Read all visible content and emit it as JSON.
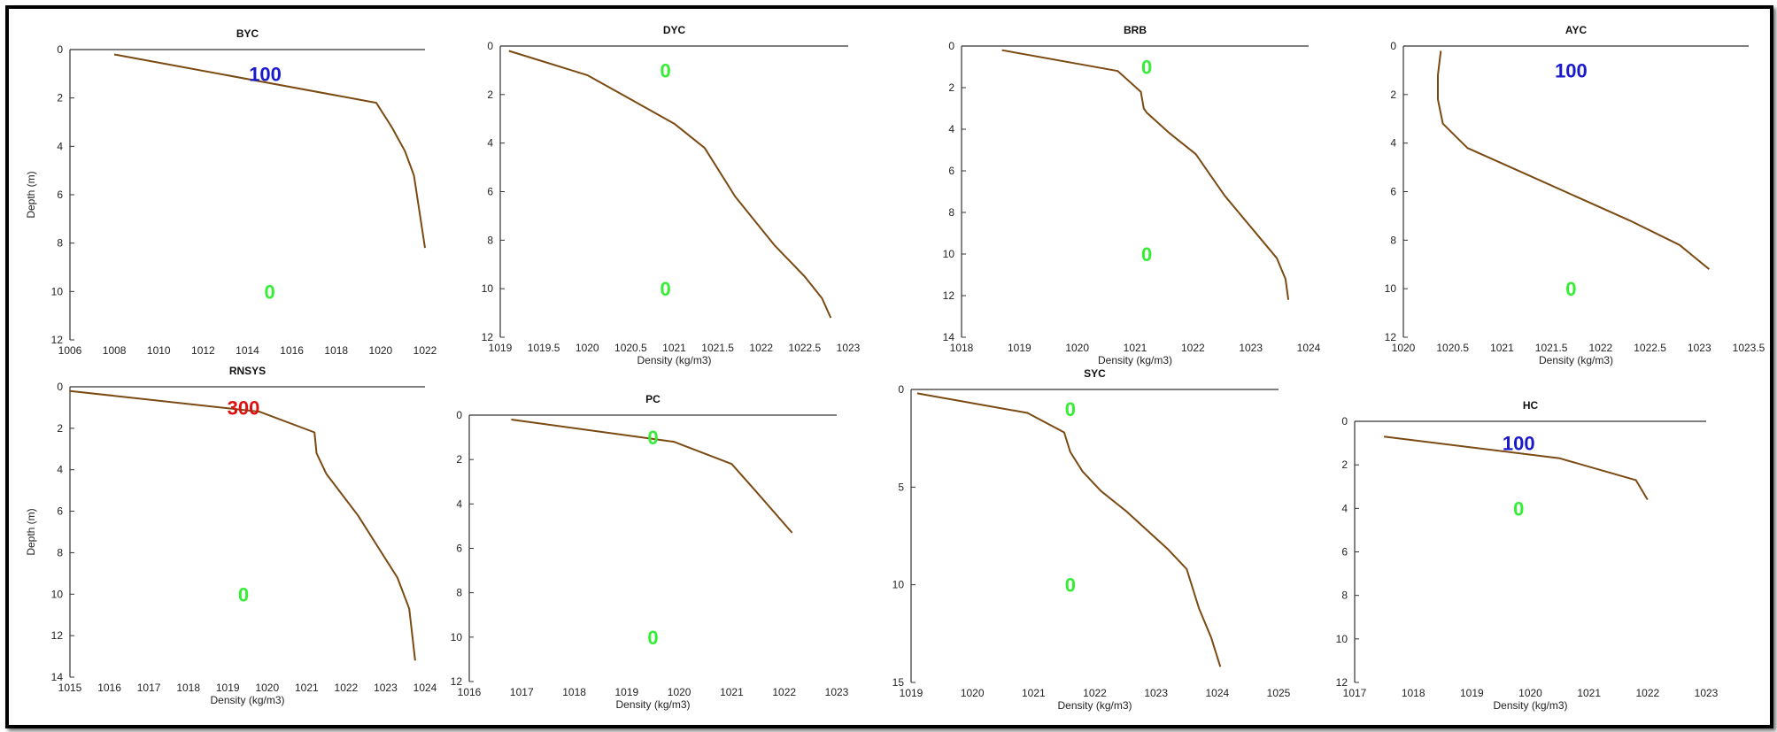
{
  "colors": {
    "profile": "#7B4A12",
    "axis": "#333333",
    "blue": "#1a1acc",
    "green": "#33ee33",
    "red": "#dd1111"
  },
  "chart_data": [
    {
      "type": "line",
      "title": "BYC",
      "xlabel": "",
      "ylabel": "Depth (m)",
      "xlim": [
        1006,
        1022
      ],
      "ylim": [
        0,
        12
      ],
      "xticks": [
        1006,
        1008,
        1010,
        1012,
        1014,
        1016,
        1018,
        1020,
        1022
      ],
      "yticks": [
        0,
        2,
        4,
        6,
        8,
        10,
        12
      ],
      "x": [
        1008,
        1019.8,
        1020.5,
        1021.1,
        1021.5,
        1022
      ],
      "y": [
        0.2,
        2.2,
        3.2,
        4.2,
        5.2,
        8.2
      ],
      "annotations": [
        {
          "text": "100",
          "x": 1014.8,
          "y": 1.0,
          "color": "blue"
        },
        {
          "text": "0",
          "x": 1015,
          "y": 10.0,
          "color": "green"
        }
      ]
    },
    {
      "type": "line",
      "title": "DYC",
      "xlabel": "Density (kg/m3)",
      "ylabel": "",
      "xlim": [
        1019,
        1023
      ],
      "ylim": [
        0,
        12
      ],
      "xticks": [
        1019,
        1019.5,
        1020,
        1020.5,
        1021,
        1021.5,
        1022,
        1022.5,
        1023
      ],
      "yticks": [
        0,
        2,
        4,
        6,
        8,
        10,
        12
      ],
      "x": [
        1019.1,
        1020.0,
        1020.5,
        1021.0,
        1021.35,
        1021.7,
        1022.15,
        1022.5,
        1022.7,
        1022.8
      ],
      "y": [
        0.2,
        1.2,
        2.2,
        3.2,
        4.2,
        6.2,
        8.2,
        9.5,
        10.4,
        11.2
      ],
      "annotations": [
        {
          "text": "0",
          "x": 1020.9,
          "y": 1.0,
          "color": "green"
        },
        {
          "text": "0",
          "x": 1020.9,
          "y": 10.0,
          "color": "green"
        }
      ]
    },
    {
      "type": "line",
      "title": "BRB",
      "xlabel": "Density (kg/m3)",
      "ylabel": "",
      "xlim": [
        1018,
        1024
      ],
      "ylim": [
        0,
        14
      ],
      "xticks": [
        1018,
        1019,
        1020,
        1021,
        1022,
        1023,
        1024
      ],
      "yticks": [
        0,
        2,
        4,
        6,
        8,
        10,
        12,
        14
      ],
      "x": [
        1018.7,
        1020.7,
        1021.1,
        1021.15,
        1021.2,
        1021.6,
        1022.05,
        1022.3,
        1022.55,
        1022.85,
        1023.15,
        1023.45,
        1023.6,
        1023.65
      ],
      "y": [
        0.2,
        1.2,
        2.2,
        3.0,
        3.2,
        4.2,
        5.2,
        6.2,
        7.2,
        8.2,
        9.2,
        10.2,
        11.2,
        12.2
      ],
      "annotations": [
        {
          "text": "0",
          "x": 1021.2,
          "y": 1.0,
          "color": "green"
        },
        {
          "text": "0",
          "x": 1021.2,
          "y": 10.0,
          "color": "green"
        }
      ]
    },
    {
      "type": "line",
      "title": "AYC",
      "xlabel": "Density (kg/m3)",
      "ylabel": "",
      "xlim": [
        1020,
        1023.5
      ],
      "ylim": [
        0,
        12
      ],
      "xticks": [
        1020,
        1020.5,
        1021,
        1021.5,
        1022,
        1022.5,
        1023,
        1023.5
      ],
      "yticks": [
        0,
        2,
        4,
        6,
        8,
        10,
        12
      ],
      "x": [
        1020.38,
        1020.35,
        1020.35,
        1020.4,
        1020.65,
        1021.2,
        1022.3,
        1022.8,
        1023.1
      ],
      "y": [
        0.2,
        1.2,
        2.2,
        3.2,
        4.2,
        5.2,
        7.2,
        8.2,
        9.2
      ],
      "annotations": [
        {
          "text": "100",
          "x": 1021.7,
          "y": 1.0,
          "color": "blue"
        },
        {
          "text": "0",
          "x": 1021.7,
          "y": 10.0,
          "color": "green"
        }
      ]
    },
    {
      "type": "line",
      "title": "RNSYS",
      "xlabel": "Density (kg/m3)",
      "ylabel": "Depth (m)",
      "xlim": [
        1015,
        1024
      ],
      "ylim": [
        0,
        14
      ],
      "xticks": [
        1015,
        1016,
        1017,
        1018,
        1019,
        1020,
        1021,
        1022,
        1023,
        1024
      ],
      "yticks": [
        0,
        2,
        4,
        6,
        8,
        10,
        12,
        14
      ],
      "x": [
        1015.0,
        1019.8,
        1021.2,
        1021.25,
        1021.5,
        1022.3,
        1022.8,
        1023.3,
        1023.6,
        1023.75
      ],
      "y": [
        0.2,
        1.2,
        2.2,
        3.2,
        4.2,
        6.2,
        7.7,
        9.2,
        10.7,
        13.2
      ],
      "annotations": [
        {
          "text": "300",
          "x": 1019.4,
          "y": 1.0,
          "color": "red"
        },
        {
          "text": "0",
          "x": 1019.4,
          "y": 10.0,
          "color": "green"
        }
      ]
    },
    {
      "type": "line",
      "title": "PC",
      "xlabel": "Density (kg/m3)",
      "ylabel": "",
      "xlim": [
        1016,
        1023
      ],
      "ylim": [
        0,
        12
      ],
      "xticks": [
        1016,
        1017,
        1018,
        1019,
        1020,
        1021,
        1022,
        1023
      ],
      "yticks": [
        0,
        2,
        4,
        6,
        8,
        10,
        12
      ],
      "x": [
        1016.8,
        1019.9,
        1021.0,
        1021.45,
        1022.15
      ],
      "y": [
        0.2,
        1.2,
        2.2,
        3.4,
        5.3
      ],
      "annotations": [
        {
          "text": "0",
          "x": 1019.5,
          "y": 1.0,
          "color": "green"
        },
        {
          "text": "0",
          "x": 1019.5,
          "y": 10.0,
          "color": "green"
        }
      ]
    },
    {
      "type": "line",
      "title": "SYC",
      "xlabel": "Density (kg/m3)",
      "ylabel": "",
      "xlim": [
        1019,
        1025
      ],
      "ylim": [
        0,
        15
      ],
      "xticks": [
        1019,
        1020,
        1021,
        1022,
        1023,
        1024,
        1025
      ],
      "yticks": [
        0,
        5,
        10,
        15
      ],
      "x": [
        1019.1,
        1020.9,
        1021.5,
        1021.6,
        1021.8,
        1022.1,
        1022.5,
        1023.2,
        1023.5,
        1023.7,
        1023.9,
        1024.05
      ],
      "y": [
        0.2,
        1.2,
        2.2,
        3.2,
        4.2,
        5.2,
        6.2,
        8.2,
        9.2,
        11.2,
        12.7,
        14.2
      ],
      "annotations": [
        {
          "text": "0",
          "x": 1021.6,
          "y": 1.0,
          "color": "green"
        },
        {
          "text": "0",
          "x": 1021.6,
          "y": 10.0,
          "color": "green"
        }
      ]
    },
    {
      "type": "line",
      "title": "HC",
      "xlabel": "Density (kg/m3)",
      "ylabel": "",
      "xlim": [
        1017,
        1023
      ],
      "ylim": [
        0,
        12
      ],
      "xticks": [
        1017,
        1018,
        1019,
        1020,
        1021,
        1022,
        1023
      ],
      "yticks": [
        0,
        2,
        4,
        6,
        8,
        10,
        12
      ],
      "x": [
        1017.5,
        1020.5,
        1021.8,
        1022.0
      ],
      "y": [
        0.7,
        1.7,
        2.7,
        3.6
      ],
      "annotations": [
        {
          "text": "100",
          "x": 1019.8,
          "y": 1.0,
          "color": "blue"
        },
        {
          "text": "0",
          "x": 1019.8,
          "y": 4.0,
          "color": "green"
        }
      ]
    }
  ]
}
